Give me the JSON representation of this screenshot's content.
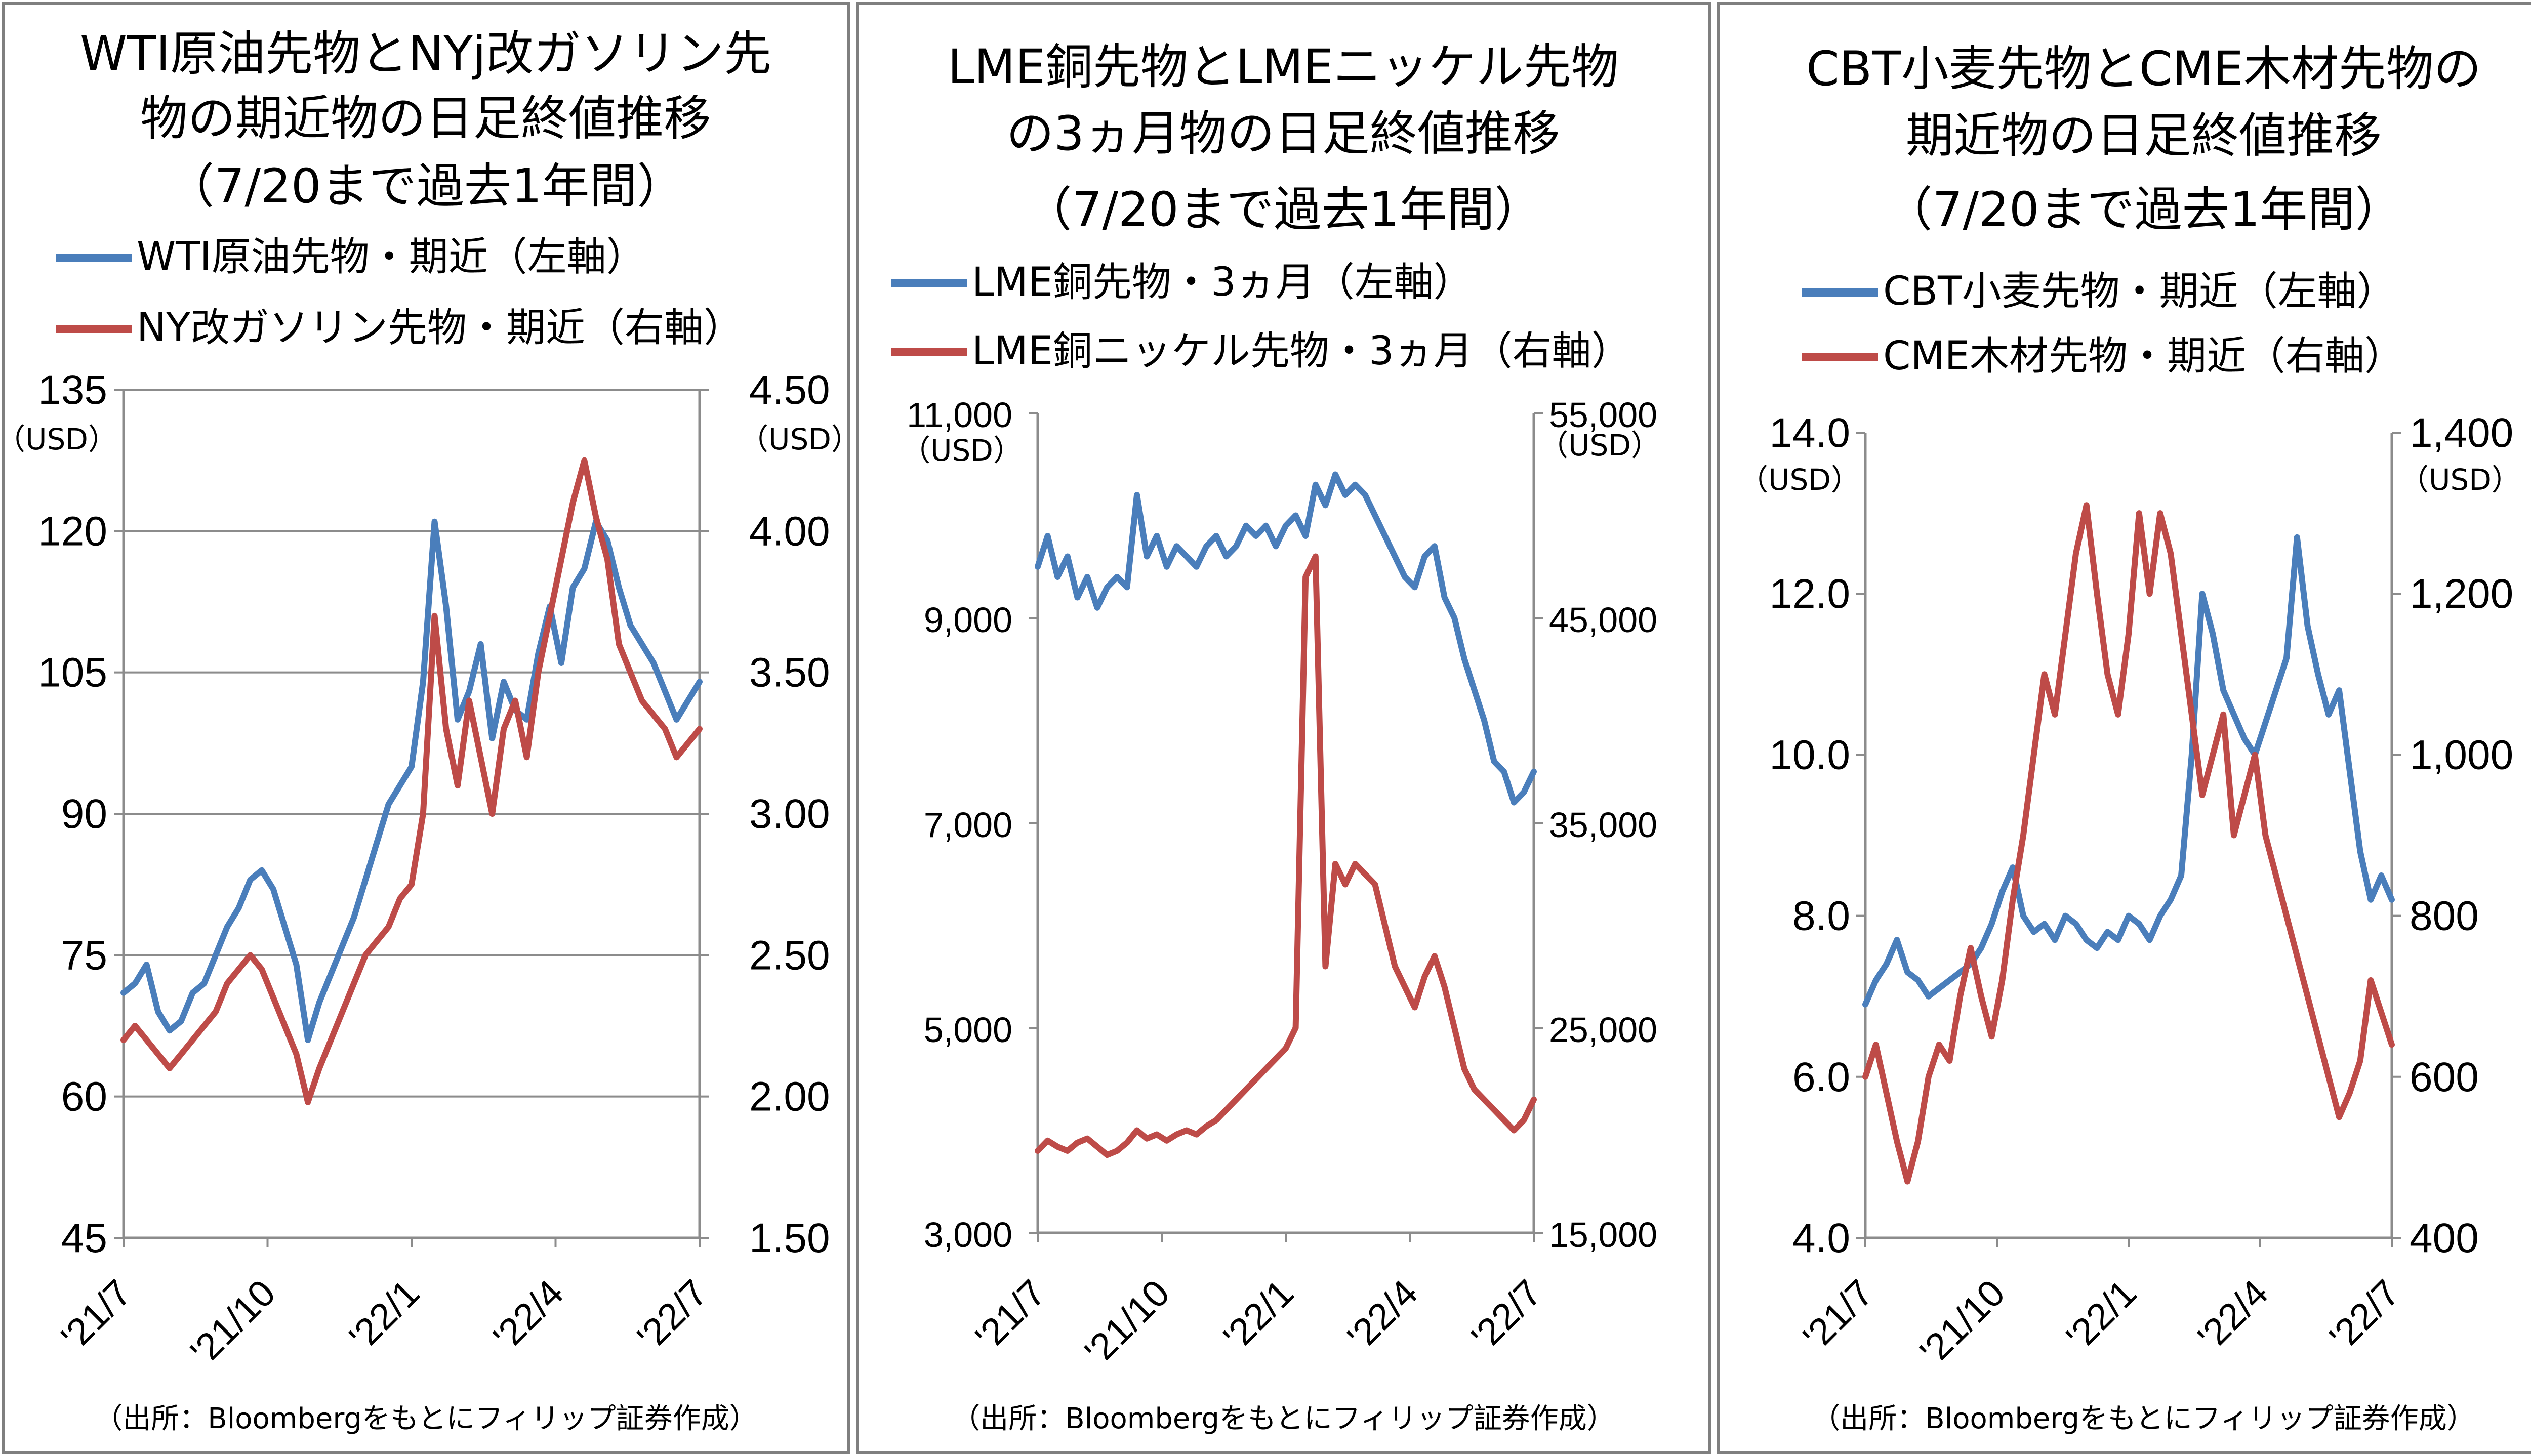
{
  "chart_data": [
    {
      "type": "line",
      "title": [
        "WTI原油先物とNYj改ガソリン先",
        "物の期近物の日足終値推移",
        "（7/20まで過去1年間）"
      ],
      "x_ticks": [
        "'21/7",
        "'21/10",
        "'22/1",
        "'22/4",
        "'22/7"
      ],
      "y_left": {
        "min": 45,
        "max": 135,
        "step": 15,
        "ticks": [
          "135",
          "120",
          "105",
          "90",
          "75",
          "60",
          "45"
        ],
        "unit": "（USD）"
      },
      "y_right": {
        "min": 1.5,
        "max": 4.5,
        "step": 0.5,
        "ticks": [
          "4.50",
          "4.00",
          "3.50",
          "3.00",
          "2.50",
          "2.00",
          "1.50"
        ],
        "unit": "（USD）"
      },
      "grid": true,
      "source": "（出所：Bloombergをもとにフィリップ証券作成）",
      "series": [
        {
          "name": "WTI原油先物・期近（左軸）",
          "axis": "left",
          "color": "#4a7ebb",
          "x": [
            0,
            0.02,
            0.04,
            0.06,
            0.08,
            0.1,
            0.12,
            0.14,
            0.16,
            0.18,
            0.2,
            0.22,
            0.24,
            0.26,
            0.28,
            0.3,
            0.32,
            0.34,
            0.36,
            0.38,
            0.4,
            0.42,
            0.44,
            0.46,
            0.48,
            0.5,
            0.52,
            0.54,
            0.56,
            0.58,
            0.6,
            0.62,
            0.64,
            0.66,
            0.68,
            0.7,
            0.72,
            0.74,
            0.76,
            0.78,
            0.8,
            0.82,
            0.84,
            0.86,
            0.88,
            0.9,
            0.92,
            0.94,
            0.96,
            0.98,
            1.0
          ],
          "values": [
            71,
            72,
            74,
            69,
            67,
            68,
            71,
            72,
            75,
            78,
            80,
            83,
            84,
            82,
            78,
            74,
            66,
            70,
            73,
            76,
            79,
            83,
            87,
            91,
            93,
            95,
            104,
            121,
            112,
            100,
            103,
            108,
            98,
            104,
            101,
            100,
            107,
            112,
            106,
            114,
            116,
            121,
            119,
            114,
            110,
            108,
            106,
            103,
            100,
            102,
            104
          ]
        },
        {
          "name": "NY改ガソリン先物・期近（右軸）",
          "axis": "right",
          "color": "#be4b48",
          "x": [
            0,
            0.02,
            0.04,
            0.06,
            0.08,
            0.1,
            0.12,
            0.14,
            0.16,
            0.18,
            0.2,
            0.22,
            0.24,
            0.26,
            0.28,
            0.3,
            0.32,
            0.34,
            0.36,
            0.38,
            0.4,
            0.42,
            0.44,
            0.46,
            0.48,
            0.5,
            0.52,
            0.54,
            0.56,
            0.58,
            0.6,
            0.62,
            0.64,
            0.66,
            0.68,
            0.7,
            0.72,
            0.74,
            0.76,
            0.78,
            0.8,
            0.82,
            0.84,
            0.86,
            0.88,
            0.9,
            0.92,
            0.94,
            0.96,
            0.98,
            1.0
          ],
          "values": [
            2.2,
            2.25,
            2.2,
            2.15,
            2.1,
            2.15,
            2.2,
            2.25,
            2.3,
            2.4,
            2.45,
            2.5,
            2.45,
            2.35,
            2.25,
            2.15,
            1.98,
            2.1,
            2.2,
            2.3,
            2.4,
            2.5,
            2.55,
            2.6,
            2.7,
            2.75,
            3.0,
            3.7,
            3.3,
            3.1,
            3.4,
            3.2,
            3.0,
            3.3,
            3.4,
            3.2,
            3.5,
            3.7,
            3.9,
            4.1,
            4.25,
            4.05,
            3.9,
            3.6,
            3.5,
            3.4,
            3.35,
            3.3,
            3.2,
            3.25,
            3.3
          ]
        }
      ]
    },
    {
      "type": "line",
      "title": [
        "LME銅先物とLMEニッケル先物",
        "の3ヵ月物の日足終値推移",
        "（7/20まで過去1年間）"
      ],
      "x_ticks": [
        "'21/7",
        "'21/10",
        "'22/1",
        "'22/4",
        "'22/7"
      ],
      "y_left": {
        "min": 3000,
        "max": 11000,
        "step": 2000,
        "ticks": [
          "11,000",
          "9,000",
          "7,000",
          "5,000",
          "3,000"
        ],
        "unit": "（USD）"
      },
      "y_right": {
        "min": 15000,
        "max": 55000,
        "step": 10000,
        "ticks": [
          "55,000",
          "45,000",
          "35,000",
          "25,000",
          "15,000"
        ],
        "unit": "（USD）"
      },
      "grid": false,
      "source": "（出所：Bloombergをもとにフィリップ証券作成）",
      "series": [
        {
          "name": "LME銅先物・3ヵ月（左軸）",
          "axis": "left",
          "color": "#4a7ebb",
          "x": [
            0,
            0.02,
            0.04,
            0.06,
            0.08,
            0.1,
            0.12,
            0.14,
            0.16,
            0.18,
            0.2,
            0.22,
            0.24,
            0.26,
            0.28,
            0.3,
            0.32,
            0.34,
            0.36,
            0.38,
            0.4,
            0.42,
            0.44,
            0.46,
            0.48,
            0.5,
            0.52,
            0.54,
            0.56,
            0.58,
            0.6,
            0.62,
            0.64,
            0.66,
            0.68,
            0.7,
            0.72,
            0.74,
            0.76,
            0.78,
            0.8,
            0.82,
            0.84,
            0.86,
            0.88,
            0.9,
            0.92,
            0.94,
            0.96,
            0.98,
            1.0
          ],
          "values": [
            9500,
            9800,
            9400,
            9600,
            9200,
            9400,
            9100,
            9300,
            9400,
            9300,
            10200,
            9600,
            9800,
            9500,
            9700,
            9600,
            9500,
            9700,
            9800,
            9600,
            9700,
            9900,
            9800,
            9900,
            9700,
            9900,
            10000,
            9800,
            10300,
            10100,
            10400,
            10200,
            10300,
            10200,
            10000,
            9800,
            9600,
            9400,
            9300,
            9600,
            9700,
            9200,
            9000,
            8600,
            8300,
            8000,
            7600,
            7500,
            7200,
            7300,
            7500
          ]
        },
        {
          "name": "LME銅ニッケル先物・3ヵ月（右軸）",
          "axis": "right",
          "color": "#be4b48",
          "x": [
            0,
            0.02,
            0.04,
            0.06,
            0.08,
            0.1,
            0.12,
            0.14,
            0.16,
            0.18,
            0.2,
            0.22,
            0.24,
            0.26,
            0.28,
            0.3,
            0.32,
            0.34,
            0.36,
            0.38,
            0.4,
            0.42,
            0.44,
            0.46,
            0.48,
            0.5,
            0.52,
            0.54,
            0.56,
            0.58,
            0.6,
            0.62,
            0.64,
            0.66,
            0.68,
            0.7,
            0.72,
            0.74,
            0.76,
            0.78,
            0.8,
            0.82,
            0.84,
            0.86,
            0.88,
            0.9,
            0.92,
            0.94,
            0.96,
            0.98,
            1.0
          ],
          "values": [
            19000,
            19500,
            19200,
            19000,
            19400,
            19600,
            19200,
            18800,
            19000,
            19400,
            20000,
            19600,
            19800,
            19500,
            19800,
            20000,
            19800,
            20200,
            20500,
            21000,
            21500,
            22000,
            22500,
            23000,
            23500,
            24000,
            25000,
            47000,
            48000,
            28000,
            33000,
            32000,
            33000,
            32500,
            32000,
            30000,
            28000,
            27000,
            26000,
            27500,
            28500,
            27000,
            25000,
            23000,
            22000,
            21500,
            21000,
            20500,
            20000,
            20500,
            21500
          ]
        }
      ]
    },
    {
      "type": "line",
      "title": [
        "CBT小麦先物とCME木材先物の",
        "期近物の日足終値推移",
        "（7/20まで過去1年間）"
      ],
      "x_ticks": [
        "'21/7",
        "'21/10",
        "'22/1",
        "'22/4",
        "'22/7"
      ],
      "y_left": {
        "min": 4.0,
        "max": 14.0,
        "step": 2.0,
        "ticks": [
          "14.0",
          "12.0",
          "10.0",
          "8.0",
          "6.0",
          "4.0"
        ],
        "unit": "（USD）"
      },
      "y_right": {
        "min": 400,
        "max": 1400,
        "step": 200,
        "ticks": [
          "1,400",
          "1,200",
          "1,000",
          "800",
          "600",
          "400"
        ],
        "unit": "（USD）"
      },
      "grid": false,
      "source": "（出所：Bloombergをもとにフィリップ証券作成）",
      "series": [
        {
          "name": "CBT小麦先物・期近（左軸）",
          "axis": "left",
          "color": "#4a7ebb",
          "x": [
            0,
            0.02,
            0.04,
            0.06,
            0.08,
            0.1,
            0.12,
            0.14,
            0.16,
            0.18,
            0.2,
            0.22,
            0.24,
            0.26,
            0.28,
            0.3,
            0.32,
            0.34,
            0.36,
            0.38,
            0.4,
            0.42,
            0.44,
            0.46,
            0.48,
            0.5,
            0.52,
            0.54,
            0.56,
            0.58,
            0.6,
            0.62,
            0.64,
            0.66,
            0.68,
            0.7,
            0.72,
            0.74,
            0.76,
            0.78,
            0.8,
            0.82,
            0.84,
            0.86,
            0.88,
            0.9,
            0.92,
            0.94,
            0.96,
            0.98,
            1.0
          ],
          "values": [
            6.9,
            7.2,
            7.4,
            7.7,
            7.3,
            7.2,
            7.0,
            7.1,
            7.2,
            7.3,
            7.4,
            7.6,
            7.9,
            8.3,
            8.6,
            8.0,
            7.8,
            7.9,
            7.7,
            8.0,
            7.9,
            7.7,
            7.6,
            7.8,
            7.7,
            8.0,
            7.9,
            7.7,
            8.0,
            8.2,
            8.5,
            10.0,
            12.0,
            11.5,
            10.8,
            10.5,
            10.2,
            10.0,
            10.4,
            10.8,
            11.2,
            12.7,
            11.6,
            11.0,
            10.5,
            10.8,
            9.8,
            8.8,
            8.2,
            8.5,
            8.2
          ]
        },
        {
          "name": "CME木材先物・期近（右軸）",
          "axis": "right",
          "color": "#be4b48",
          "x": [
            0,
            0.02,
            0.04,
            0.06,
            0.08,
            0.1,
            0.12,
            0.14,
            0.16,
            0.18,
            0.2,
            0.22,
            0.24,
            0.26,
            0.28,
            0.3,
            0.32,
            0.34,
            0.36,
            0.38,
            0.4,
            0.42,
            0.44,
            0.46,
            0.48,
            0.5,
            0.52,
            0.54,
            0.56,
            0.58,
            0.6,
            0.62,
            0.64,
            0.66,
            0.68,
            0.7,
            0.72,
            0.74,
            0.76,
            0.78,
            0.8,
            0.82,
            0.84,
            0.86,
            0.88,
            0.9,
            0.92,
            0.94,
            0.96,
            0.98,
            1.0
          ],
          "values": [
            600,
            640,
            580,
            520,
            470,
            520,
            600,
            640,
            620,
            700,
            760,
            700,
            650,
            720,
            820,
            900,
            1000,
            1100,
            1050,
            1150,
            1250,
            1310,
            1200,
            1100,
            1050,
            1150,
            1300,
            1200,
            1300,
            1250,
            1150,
            1050,
            950,
            1000,
            1050,
            900,
            950,
            1000,
            900,
            850,
            800,
            750,
            700,
            650,
            600,
            550,
            580,
            620,
            720,
            680,
            640
          ]
        }
      ]
    }
  ]
}
